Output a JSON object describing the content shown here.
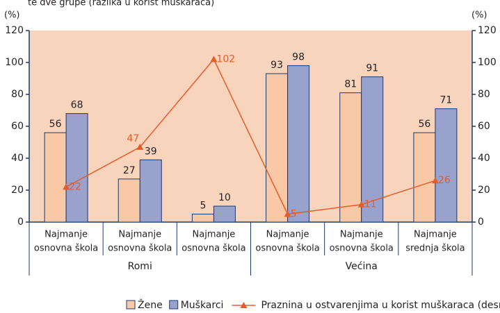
{
  "chart_data": {
    "type": "bar",
    "subtitle": "te dve grupe (razlika u korist muškaraca)",
    "ylabel": "(%)",
    "y2label": "(%)",
    "categories": [
      [
        "Najmanje",
        "osnovna škola"
      ],
      [
        "Najmanje",
        "osnovna škola"
      ],
      [
        "Najmanje",
        "osnovna škola"
      ],
      [
        "Najmanje",
        "osnovna škola"
      ],
      [
        "Najmanje",
        "osnovna škola"
      ],
      [
        "Najmanje",
        "srednja škola"
      ]
    ],
    "groups": [
      {
        "name": "Romi",
        "span": 3
      },
      {
        "name": "Većina",
        "span": 3
      }
    ],
    "series": [
      {
        "name": "Žene",
        "type": "bar",
        "color": "#f9c8a6",
        "values": [
          56,
          27,
          5,
          93,
          81,
          56
        ]
      },
      {
        "name": "Muškarci",
        "type": "bar",
        "color": "#99a1cd",
        "values": [
          68,
          39,
          10,
          98,
          91,
          71
        ]
      },
      {
        "name": "Praznina u ostvarenjima u korist muškaraca (desna skala)",
        "type": "line",
        "axis": "y2",
        "color": "#e35d2b",
        "values": [
          22,
          47,
          102,
          5,
          11,
          26
        ]
      }
    ],
    "ylim": [
      0,
      120
    ],
    "yticks": [
      0,
      20,
      40,
      60,
      80,
      100,
      120
    ],
    "y2lim": [
      0,
      120
    ],
    "y2ticks": [
      0,
      20,
      40,
      60,
      80,
      100,
      120
    ],
    "background": "#f8d4bc",
    "axis_color": "#1b3a6e"
  }
}
